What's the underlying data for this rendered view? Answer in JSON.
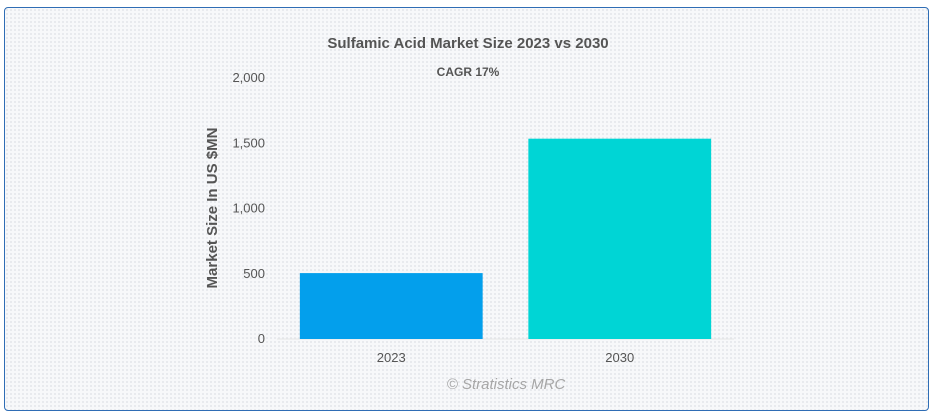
{
  "chart_data": {
    "type": "bar",
    "title": "Sulfamic Acid Market Size 2023 vs 2030",
    "subtitle": "CAGR 17%",
    "xlabel": "",
    "ylabel": "Market Size In US $MN",
    "categories": [
      "2023",
      "2030"
    ],
    "values": [
      505,
      1535
    ],
    "colors": [
      "#039fec",
      "#00d5d5"
    ],
    "ylim": [
      0,
      2000
    ],
    "yticks": [
      0,
      500,
      1000,
      1500,
      2000
    ],
    "ytick_labels": [
      "0",
      "500",
      "1,000",
      "1,500",
      "2,000"
    ],
    "grid": false
  },
  "credit": "© Stratistics MRC"
}
